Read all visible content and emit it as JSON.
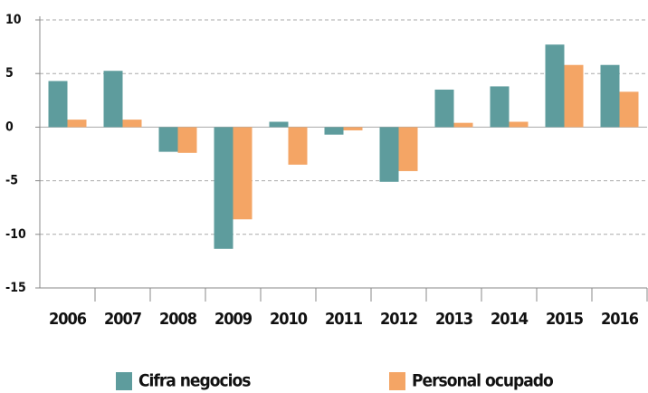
{
  "chart_data": {
    "type": "bar",
    "categories": [
      "2006",
      "2007",
      "2008",
      "2009",
      "2010",
      "2011",
      "2012",
      "2013",
      "2014",
      "2015",
      "2016"
    ],
    "series": [
      {
        "name": "Cifra negocios",
        "color": "#5e9c9d",
        "values": [
          4.3,
          5.25,
          -2.3,
          -11.35,
          0.5,
          -0.7,
          -5.1,
          3.5,
          3.8,
          7.7,
          5.8
        ]
      },
      {
        "name": "Personal ocupado",
        "color": "#f4a565",
        "values": [
          0.7,
          0.7,
          -2.4,
          -8.6,
          -3.5,
          -0.3,
          -4.1,
          0.4,
          0.5,
          5.8,
          3.3
        ]
      }
    ],
    "ylim": [
      -15,
      10
    ],
    "yticks": [
      -15,
      -10,
      -5,
      0,
      5,
      10
    ],
    "grid": true,
    "legend": "bottom"
  }
}
